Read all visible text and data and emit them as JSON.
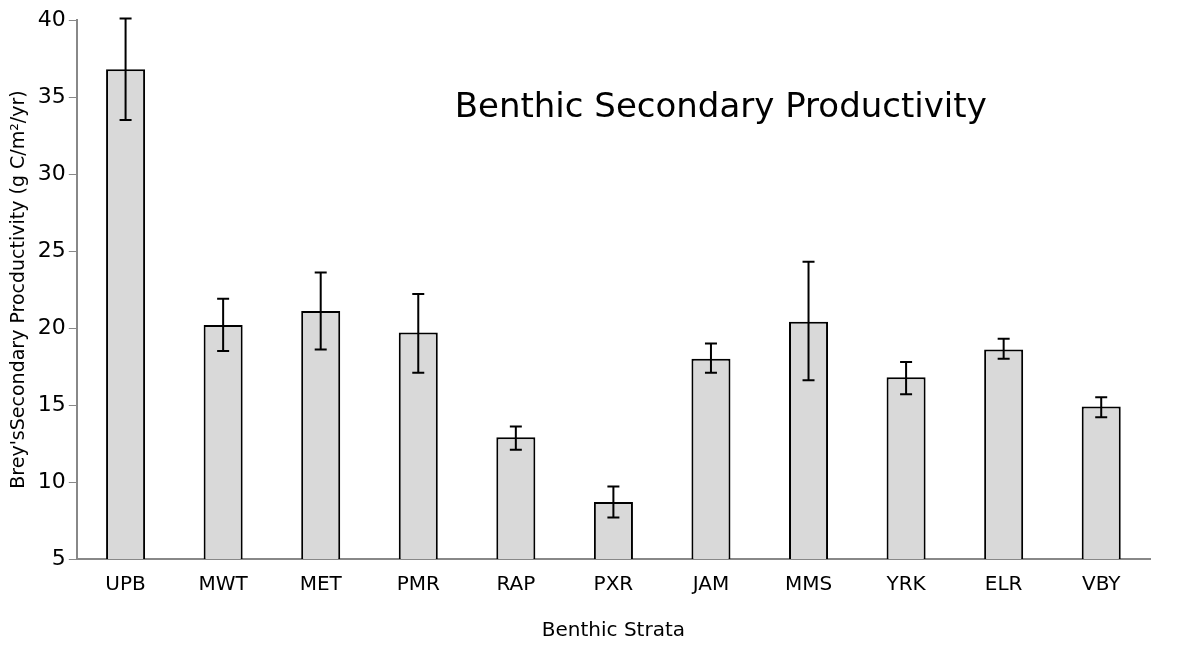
{
  "chart_data": {
    "type": "bar",
    "title": "Benthic Secondary Productivity",
    "xlabel": "Benthic Strata",
    "ylabel": "Brey'sSecondary Procductivity (g C/m²/yr)",
    "categories": [
      "UPB",
      "MWT",
      "MET",
      "PMR",
      "RAP",
      "PXR",
      "JAM",
      "MMS",
      "YRK",
      "ELR",
      "VBY"
    ],
    "values": [
      36.8,
      20.2,
      21.1,
      19.7,
      12.9,
      8.7,
      18.0,
      20.4,
      16.8,
      18.6,
      14.9
    ],
    "errors": [
      [
        33.5,
        40.1
      ],
      [
        18.5,
        21.9
      ],
      [
        18.6,
        23.6
      ],
      [
        17.1,
        22.2
      ],
      [
        12.1,
        13.6
      ],
      [
        7.7,
        9.7
      ],
      [
        17.1,
        19.0
      ],
      [
        16.6,
        24.3
      ],
      [
        15.7,
        17.8
      ],
      [
        18.0,
        19.3
      ],
      [
        14.2,
        15.5
      ]
    ],
    "color": "#d9d9d9",
    "ylim": [
      5,
      40
    ],
    "yticks": [
      5,
      10,
      15,
      20,
      25,
      30,
      35,
      40
    ],
    "grid": false,
    "legend": false
  }
}
